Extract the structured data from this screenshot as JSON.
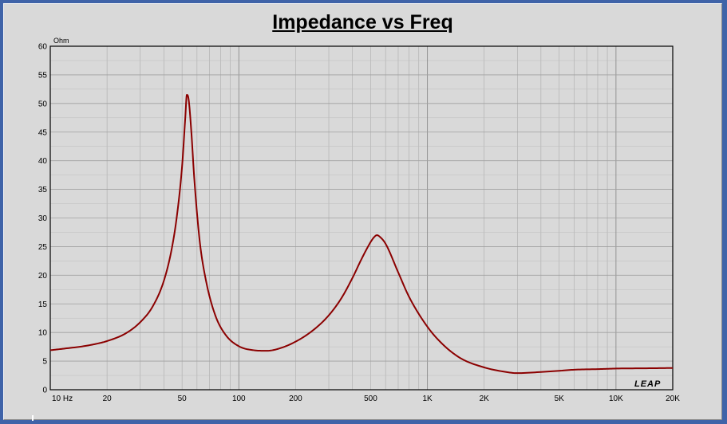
{
  "chart_data": {
    "type": "line",
    "title": "Impedance vs Freq",
    "ylabel": "Ohm",
    "xscale": "log",
    "xlim": [
      10,
      20000
    ],
    "ylim": [
      0,
      60
    ],
    "grid": true,
    "watermark": "LEAP",
    "x_tick_labels": [
      "10 Hz",
      "20",
      "50",
      "100",
      "200",
      "500",
      "1K",
      "2K",
      "5K",
      "10K",
      "20K"
    ],
    "y_tick_labels": [
      "0",
      "5",
      "10",
      "15",
      "20",
      "25",
      "30",
      "35",
      "40",
      "45",
      "50",
      "55",
      "60"
    ],
    "series": [
      {
        "color": "#8b0000",
        "x": [
          10,
          12,
          15,
          18,
          20,
          25,
          30,
          35,
          40,
          44,
          47,
          50,
          52,
          53,
          54,
          56,
          58,
          62,
          67,
          75,
          85,
          100,
          120,
          140,
          160,
          200,
          250,
          300,
          350,
          400,
          450,
          500,
          520,
          540,
          560,
          600,
          700,
          800,
          1000,
          1200,
          1500,
          2000,
          2500,
          3000,
          4000,
          5000,
          6000,
          8000,
          10000,
          15000,
          20000
        ],
        "y": [
          6.9,
          7.2,
          7.6,
          8.1,
          8.5,
          9.8,
          11.8,
          14.6,
          19.0,
          24.5,
          30.5,
          39.0,
          47.5,
          51.5,
          51.0,
          45.0,
          37.0,
          26.0,
          19.0,
          13.0,
          9.6,
          7.6,
          6.9,
          6.8,
          7.1,
          8.4,
          10.5,
          13.0,
          16.0,
          19.5,
          23.0,
          25.8,
          26.6,
          27.0,
          26.7,
          25.5,
          20.5,
          16.2,
          11.0,
          8.0,
          5.5,
          3.9,
          3.2,
          2.9,
          3.1,
          3.3,
          3.5,
          3.6,
          3.7,
          3.75,
          3.8
        ]
      }
    ]
  }
}
